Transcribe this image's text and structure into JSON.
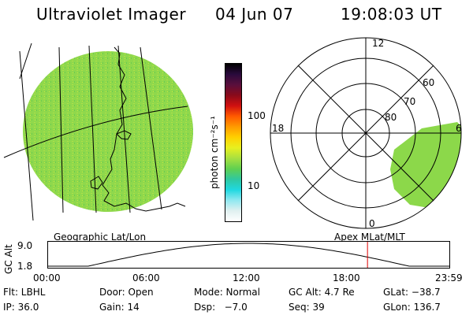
{
  "header": {
    "title": "Ultraviolet Imager",
    "date": "04 Jun 07",
    "time": "19:08:03 UT"
  },
  "colorbar": {
    "label": "photon cm⁻²s⁻¹",
    "ticks": [
      "100",
      "10"
    ],
    "colors": [
      "#000000",
      "#2a0a3c",
      "#5a0f3c",
      "#8a0a1a",
      "#d01010",
      "#ff5a00",
      "#ff9a00",
      "#ffd000",
      "#e8f020",
      "#a8e040",
      "#60d050",
      "#30c8a0",
      "#20d8e0",
      "#90e8f0",
      "#e0f0f0",
      "#ffffff"
    ]
  },
  "left_panel": {
    "caption": "Geographic Lat/Lon",
    "fill_color": "#8cd84a"
  },
  "right_panel": {
    "caption": "Apex MLat/MLT",
    "labels": {
      "top": "12",
      "left": "18",
      "right": "6",
      "bottom": "0",
      "ring60": "60",
      "ring70": "70",
      "ring80": "80"
    }
  },
  "timeline": {
    "axis_label": "GC Alt",
    "y_top": "9.0",
    "y_bottom": "1.8",
    "ticks": [
      "00:00",
      "06:00",
      "12:00",
      "18:00",
      "23:59"
    ],
    "marker_color": "#e00000",
    "marker_time_fraction": 0.796
  },
  "info": {
    "row1": [
      "Flt: LBHL",
      "Door: Open",
      "Mode: Normal",
      "GC Alt: 4.7 Re",
      "GLat: −38.7"
    ],
    "row2": [
      "IP: 36.0",
      "Gain: 14",
      "Dsp:   −7.0",
      "Seq: 39",
      "GLon: 136.7"
    ]
  }
}
